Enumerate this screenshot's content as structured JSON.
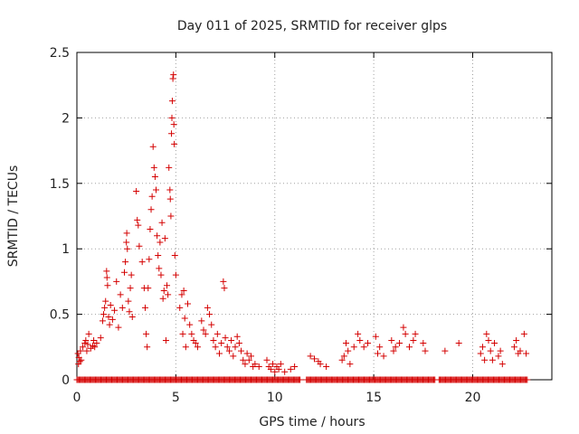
{
  "chart_data": {
    "type": "scatter",
    "title": "Day 011 of 2025, SRMTID for receiver glps",
    "xlabel": "GPS time / hours",
    "ylabel": "SRMTID / TECUs",
    "xlim": [
      0,
      24
    ],
    "ylim": [
      0,
      2.5
    ],
    "xticks": [
      0,
      5,
      10,
      15,
      20
    ],
    "xtick_labels": [
      "0",
      "5",
      "10",
      "15",
      "20"
    ],
    "yticks": [
      0,
      0.5,
      1,
      1.5,
      2,
      2.5
    ],
    "ytick_labels": [
      "0",
      "0.5",
      "1",
      "1.5",
      "2",
      "2.5"
    ],
    "grid": true,
    "marker": "plus",
    "color": "#d40000",
    "baseline_segments": [
      [
        0,
        11.3
      ],
      [
        11.6,
        18.1
      ],
      [
        18.3,
        22.8
      ]
    ],
    "series": [
      {
        "name": "SRMTID",
        "points": [
          [
            0.05,
            0.2
          ],
          [
            0.08,
            0.12
          ],
          [
            0.1,
            0.17
          ],
          [
            0.15,
            0.14
          ],
          [
            0.18,
            0.22
          ],
          [
            0.22,
            0.15
          ],
          [
            0.3,
            0.25
          ],
          [
            0.4,
            0.28
          ],
          [
            0.45,
            0.3
          ],
          [
            0.5,
            0.22
          ],
          [
            0.55,
            0.27
          ],
          [
            0.6,
            0.35
          ],
          [
            0.7,
            0.24
          ],
          [
            0.8,
            0.26
          ],
          [
            0.85,
            0.3
          ],
          [
            0.9,
            0.25
          ],
          [
            1.0,
            0.28
          ],
          [
            1.2,
            0.32
          ],
          [
            1.3,
            0.45
          ],
          [
            1.35,
            0.5
          ],
          [
            1.4,
            0.55
          ],
          [
            1.45,
            0.6
          ],
          [
            1.5,
            0.83
          ],
          [
            1.52,
            0.78
          ],
          [
            1.55,
            0.72
          ],
          [
            1.6,
            0.48
          ],
          [
            1.65,
            0.42
          ],
          [
            1.7,
            0.57
          ],
          [
            1.8,
            0.46
          ],
          [
            1.9,
            0.53
          ],
          [
            2.0,
            0.75
          ],
          [
            2.1,
            0.4
          ],
          [
            2.2,
            0.65
          ],
          [
            2.3,
            0.55
          ],
          [
            2.4,
            0.82
          ],
          [
            2.45,
            0.9
          ],
          [
            2.5,
            1.05
          ],
          [
            2.52,
            1.12
          ],
          [
            2.55,
            1.0
          ],
          [
            2.6,
            0.6
          ],
          [
            2.65,
            0.52
          ],
          [
            2.7,
            0.7
          ],
          [
            2.75,
            0.8
          ],
          [
            2.8,
            0.48
          ],
          [
            3.0,
            1.44
          ],
          [
            3.05,
            1.22
          ],
          [
            3.1,
            1.18
          ],
          [
            3.15,
            1.02
          ],
          [
            3.3,
            0.9
          ],
          [
            3.4,
            0.7
          ],
          [
            3.45,
            0.55
          ],
          [
            3.5,
            0.35
          ],
          [
            3.55,
            0.25
          ],
          [
            3.6,
            0.7
          ],
          [
            3.65,
            0.92
          ],
          [
            3.7,
            1.15
          ],
          [
            3.75,
            1.3
          ],
          [
            3.8,
            1.4
          ],
          [
            3.85,
            1.78
          ],
          [
            3.9,
            1.62
          ],
          [
            3.95,
            1.55
          ],
          [
            4.0,
            1.45
          ],
          [
            4.05,
            1.1
          ],
          [
            4.1,
            0.95
          ],
          [
            4.15,
            0.85
          ],
          [
            4.2,
            1.05
          ],
          [
            4.25,
            0.8
          ],
          [
            4.3,
            1.2
          ],
          [
            4.35,
            0.62
          ],
          [
            4.4,
            0.68
          ],
          [
            4.45,
            1.08
          ],
          [
            4.5,
            0.3
          ],
          [
            4.55,
            0.72
          ],
          [
            4.6,
            0.65
          ],
          [
            4.65,
            1.62
          ],
          [
            4.7,
            1.45
          ],
          [
            4.72,
            1.38
          ],
          [
            4.75,
            1.25
          ],
          [
            4.78,
            1.88
          ],
          [
            4.8,
            2.0
          ],
          [
            4.82,
            2.13
          ],
          [
            4.85,
            2.3
          ],
          [
            4.88,
            2.33
          ],
          [
            4.9,
            1.95
          ],
          [
            4.92,
            1.8
          ],
          [
            4.95,
            0.95
          ],
          [
            5.0,
            0.8
          ],
          [
            5.2,
            0.55
          ],
          [
            5.3,
            0.65
          ],
          [
            5.35,
            0.35
          ],
          [
            5.4,
            0.68
          ],
          [
            5.45,
            0.47
          ],
          [
            5.5,
            0.25
          ],
          [
            5.6,
            0.58
          ],
          [
            5.7,
            0.42
          ],
          [
            5.8,
            0.35
          ],
          [
            5.9,
            0.3
          ],
          [
            6.0,
            0.28
          ],
          [
            6.1,
            0.25
          ],
          [
            6.3,
            0.45
          ],
          [
            6.4,
            0.38
          ],
          [
            6.5,
            0.35
          ],
          [
            6.6,
            0.55
          ],
          [
            6.7,
            0.5
          ],
          [
            6.8,
            0.42
          ],
          [
            6.9,
            0.3
          ],
          [
            7.0,
            0.25
          ],
          [
            7.1,
            0.35
          ],
          [
            7.2,
            0.2
          ],
          [
            7.3,
            0.28
          ],
          [
            7.4,
            0.75
          ],
          [
            7.45,
            0.7
          ],
          [
            7.5,
            0.32
          ],
          [
            7.6,
            0.25
          ],
          [
            7.7,
            0.22
          ],
          [
            7.8,
            0.3
          ],
          [
            7.9,
            0.18
          ],
          [
            8.0,
            0.25
          ],
          [
            8.1,
            0.33
          ],
          [
            8.2,
            0.28
          ],
          [
            8.3,
            0.22
          ],
          [
            8.4,
            0.15
          ],
          [
            8.5,
            0.12
          ],
          [
            8.6,
            0.2
          ],
          [
            8.7,
            0.15
          ],
          [
            8.8,
            0.18
          ],
          [
            8.9,
            0.1
          ],
          [
            9.0,
            0.12
          ],
          [
            9.2,
            0.1
          ],
          [
            9.6,
            0.15
          ],
          [
            9.7,
            0.1
          ],
          [
            9.8,
            0.08
          ],
          [
            9.9,
            0.12
          ],
          [
            10.0,
            0.06
          ],
          [
            10.1,
            0.1
          ],
          [
            10.2,
            0.08
          ],
          [
            10.3,
            0.12
          ],
          [
            10.5,
            0.06
          ],
          [
            10.8,
            0.08
          ],
          [
            11.0,
            0.1
          ],
          [
            11.8,
            0.18
          ],
          [
            12.0,
            0.16
          ],
          [
            12.2,
            0.14
          ],
          [
            12.3,
            0.12
          ],
          [
            12.6,
            0.1
          ],
          [
            13.4,
            0.15
          ],
          [
            13.5,
            0.18
          ],
          [
            13.6,
            0.28
          ],
          [
            13.7,
            0.22
          ],
          [
            13.8,
            0.12
          ],
          [
            14.0,
            0.25
          ],
          [
            14.2,
            0.35
          ],
          [
            14.3,
            0.3
          ],
          [
            14.5,
            0.25
          ],
          [
            14.7,
            0.28
          ],
          [
            15.1,
            0.33
          ],
          [
            15.2,
            0.2
          ],
          [
            15.3,
            0.25
          ],
          [
            15.5,
            0.18
          ],
          [
            15.9,
            0.3
          ],
          [
            16.0,
            0.22
          ],
          [
            16.1,
            0.25
          ],
          [
            16.3,
            0.28
          ],
          [
            16.5,
            0.4
          ],
          [
            16.6,
            0.35
          ],
          [
            16.8,
            0.25
          ],
          [
            17.0,
            0.3
          ],
          [
            17.1,
            0.35
          ],
          [
            17.5,
            0.28
          ],
          [
            17.6,
            0.22
          ],
          [
            18.6,
            0.22
          ],
          [
            19.3,
            0.28
          ],
          [
            20.4,
            0.2
          ],
          [
            20.5,
            0.25
          ],
          [
            20.6,
            0.15
          ],
          [
            20.7,
            0.35
          ],
          [
            20.8,
            0.3
          ],
          [
            20.9,
            0.22
          ],
          [
            21.0,
            0.15
          ],
          [
            21.1,
            0.28
          ],
          [
            21.3,
            0.18
          ],
          [
            21.4,
            0.22
          ],
          [
            21.5,
            0.12
          ],
          [
            22.1,
            0.25
          ],
          [
            22.2,
            0.3
          ],
          [
            22.3,
            0.2
          ],
          [
            22.4,
            0.22
          ],
          [
            22.6,
            0.35
          ],
          [
            22.7,
            0.2
          ]
        ]
      }
    ]
  }
}
